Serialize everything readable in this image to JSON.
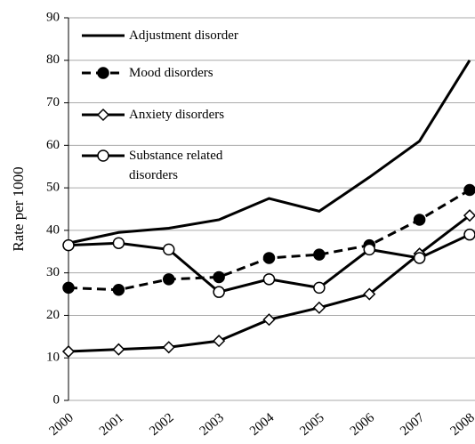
{
  "chart_data": {
    "type": "line",
    "y_label": "Rate per 1000",
    "categories": [
      "2000",
      "2001",
      "2002",
      "2003",
      "2004",
      "2005",
      "2006",
      "2007",
      "2008"
    ],
    "series": [
      {
        "name": "Adjustment disorder",
        "color": "#000000",
        "dashed": false,
        "marker": "none",
        "values": [
          37,
          39.5,
          40.5,
          42.5,
          47.5,
          44.5,
          52.5,
          61,
          80
        ]
      },
      {
        "name": "Mood disorders",
        "color": "#000000",
        "dashed": true,
        "marker": "filled-circle",
        "values": [
          26.5,
          26,
          28.5,
          29,
          33.5,
          34.3,
          36.5,
          42.5,
          49.5
        ]
      },
      {
        "name": "Anxiety disorders",
        "color": "#000000",
        "dashed": false,
        "marker": "open-diamond",
        "values": [
          11.5,
          12,
          12.5,
          14,
          19,
          21.8,
          25,
          34.5,
          43.5
        ]
      },
      {
        "name": "Substance related disorders",
        "color": "#000000",
        "dashed": false,
        "marker": "open-circle",
        "values": [
          36.5,
          37,
          35.5,
          25.5,
          28.5,
          26.5,
          35.5,
          33.5,
          39
        ]
      }
    ],
    "ylim": [
      0,
      90
    ],
    "yticks": [
      0,
      10,
      20,
      30,
      40,
      50,
      60,
      70,
      80,
      90
    ],
    "grid": true
  }
}
